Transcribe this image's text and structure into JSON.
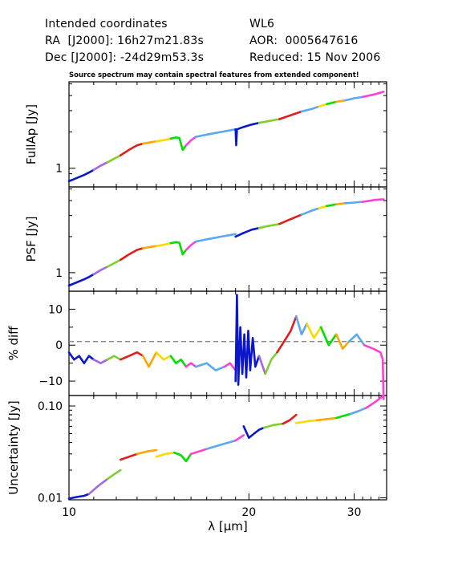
{
  "header": {
    "intended": "Intended coordinates",
    "ra": "RA  [J2000]: 16h27m21.83s",
    "dec": "Dec [J2000]: -24d29m53.3s",
    "target": "WL6",
    "aor": "AOR:  0005647616",
    "reduced": "Reduced: 15 Nov 2006"
  },
  "note": "Source spectrum may contain spectral features from extended component!",
  "colors": {
    "segments": [
      "#0b17c8",
      "#a366e8",
      "#7fcf2f",
      "#e41b1b",
      "#ffa500",
      "#ffd700",
      "#00e000",
      "#ff3fd6",
      "#5aa8ee"
    ]
  },
  "chart_data": [
    {
      "type": "line",
      "ylabel": "FullAp [Jy]",
      "yscale": "log",
      "ylim": [
        0.7,
        5.2
      ],
      "yticks": [
        {
          "value": 1,
          "label": "1"
        }
      ],
      "xlabel": "",
      "xlim": [
        10,
        34
      ],
      "series": [
        {
          "color_index": 0,
          "x": [
            10.0,
            10.3,
            10.6,
            10.8,
            11.0
          ],
          "y": [
            0.78,
            0.83,
            0.88,
            0.92,
            0.97
          ]
        },
        {
          "color_index": 1,
          "x": [
            11.0,
            11.3,
            11.6
          ],
          "y": [
            0.97,
            1.05,
            1.12
          ]
        },
        {
          "color_index": 2,
          "x": [
            11.6,
            11.9,
            12.2
          ],
          "y": [
            1.12,
            1.2,
            1.28
          ]
        },
        {
          "color_index": 3,
          "x": [
            12.2,
            12.6,
            13.0,
            13.3
          ],
          "y": [
            1.28,
            1.42,
            1.55,
            1.6
          ]
        },
        {
          "color_index": 4,
          "x": [
            13.3,
            13.6,
            14.0
          ],
          "y": [
            1.6,
            1.63,
            1.67
          ]
        },
        {
          "color_index": 5,
          "x": [
            14.0,
            14.4,
            14.8
          ],
          "y": [
            1.67,
            1.71,
            1.76
          ]
        },
        {
          "color_index": 6,
          "x": [
            14.8,
            15.1,
            15.3,
            15.5,
            15.7
          ],
          "y": [
            1.76,
            1.8,
            1.78,
            1.42,
            1.55
          ]
        },
        {
          "color_index": 7,
          "x": [
            15.7,
            16.0,
            16.3
          ],
          "y": [
            1.55,
            1.7,
            1.82
          ]
        },
        {
          "color_index": 8,
          "x": [
            16.3,
            17.0,
            18.0,
            19.0
          ],
          "y": [
            1.82,
            1.9,
            2.0,
            2.1
          ]
        },
        {
          "color_index": 0,
          "x": [
            19.0,
            19.05,
            19.1,
            19.6,
            20.2,
            20.8
          ],
          "y": [
            2.1,
            1.55,
            2.1,
            2.2,
            2.3,
            2.38
          ]
        },
        {
          "color_index": 2,
          "x": [
            20.8,
            21.5,
            22.5
          ],
          "y": [
            2.38,
            2.45,
            2.55
          ]
        },
        {
          "color_index": 3,
          "x": [
            22.5,
            23.5,
            24.5
          ],
          "y": [
            2.55,
            2.75,
            2.95
          ]
        },
        {
          "color_index": 8,
          "x": [
            24.5,
            25.5,
            26.2
          ],
          "y": [
            2.95,
            3.1,
            3.25
          ]
        },
        {
          "color_index": 5,
          "x": [
            26.2,
            27.0
          ],
          "y": [
            3.25,
            3.4
          ]
        },
        {
          "color_index": 6,
          "x": [
            27.0,
            28.0
          ],
          "y": [
            3.4,
            3.55
          ]
        },
        {
          "color_index": 4,
          "x": [
            28.0,
            29.0
          ],
          "y": [
            3.55,
            3.65
          ]
        },
        {
          "color_index": 8,
          "x": [
            29.0,
            30.0,
            31.0
          ],
          "y": [
            3.65,
            3.8,
            3.9
          ]
        },
        {
          "color_index": 7,
          "x": [
            31.0,
            32.5,
            33.6
          ],
          "y": [
            3.9,
            4.1,
            4.3
          ]
        }
      ]
    },
    {
      "type": "line",
      "ylabel": "PSF [Jy]",
      "yscale": "log",
      "ylim": [
        0.7,
        5.2
      ],
      "yticks": [
        {
          "value": 1,
          "label": "1"
        }
      ],
      "xlabel": "",
      "xlim": [
        10,
        34
      ],
      "series": [
        {
          "color_index": 0,
          "x": [
            10.0,
            10.3,
            10.6,
            10.8,
            11.0
          ],
          "y": [
            0.78,
            0.83,
            0.88,
            0.92,
            0.97
          ]
        },
        {
          "color_index": 1,
          "x": [
            11.0,
            11.3,
            11.6
          ],
          "y": [
            0.97,
            1.05,
            1.12
          ]
        },
        {
          "color_index": 2,
          "x": [
            11.6,
            11.9,
            12.2
          ],
          "y": [
            1.12,
            1.2,
            1.28
          ]
        },
        {
          "color_index": 3,
          "x": [
            12.2,
            12.6,
            13.0,
            13.3
          ],
          "y": [
            1.28,
            1.42,
            1.55,
            1.6
          ]
        },
        {
          "color_index": 4,
          "x": [
            13.3,
            13.6,
            14.0
          ],
          "y": [
            1.6,
            1.63,
            1.67
          ]
        },
        {
          "color_index": 5,
          "x": [
            14.0,
            14.4,
            14.8
          ],
          "y": [
            1.67,
            1.71,
            1.76
          ]
        },
        {
          "color_index": 6,
          "x": [
            14.8,
            15.1,
            15.3,
            15.5,
            15.7
          ],
          "y": [
            1.76,
            1.8,
            1.78,
            1.42,
            1.55
          ]
        },
        {
          "color_index": 7,
          "x": [
            15.7,
            16.0,
            16.3
          ],
          "y": [
            1.55,
            1.7,
            1.82
          ]
        },
        {
          "color_index": 8,
          "x": [
            16.3,
            17.0,
            18.0,
            19.0
          ],
          "y": [
            1.82,
            1.9,
            2.0,
            2.1
          ]
        },
        {
          "color_index": 0,
          "x": [
            19.0,
            19.6,
            20.2,
            20.8
          ],
          "y": [
            2.0,
            2.15,
            2.28,
            2.36
          ]
        },
        {
          "color_index": 2,
          "x": [
            20.8,
            21.5,
            22.5
          ],
          "y": [
            2.36,
            2.45,
            2.55
          ]
        },
        {
          "color_index": 3,
          "x": [
            22.5,
            23.5,
            24.5
          ],
          "y": [
            2.55,
            2.8,
            3.05
          ]
        },
        {
          "color_index": 8,
          "x": [
            24.5,
            25.5,
            26.2
          ],
          "y": [
            3.05,
            3.3,
            3.45
          ]
        },
        {
          "color_index": 5,
          "x": [
            26.2,
            27.0
          ],
          "y": [
            3.45,
            3.6
          ]
        },
        {
          "color_index": 6,
          "x": [
            27.0,
            28.0
          ],
          "y": [
            3.6,
            3.72
          ]
        },
        {
          "color_index": 4,
          "x": [
            28.0,
            29.0
          ],
          "y": [
            3.72,
            3.8
          ]
        },
        {
          "color_index": 8,
          "x": [
            29.0,
            30.0,
            31.0
          ],
          "y": [
            3.8,
            3.85,
            3.9
          ]
        },
        {
          "color_index": 7,
          "x": [
            31.0,
            32.5,
            33.6
          ],
          "y": [
            3.9,
            4.05,
            4.1
          ]
        }
      ]
    },
    {
      "type": "line",
      "ylabel": "% diff",
      "yscale": "linear",
      "ylim": [
        -14,
        15
      ],
      "yticks": [
        {
          "value": 10,
          "label": "10"
        },
        {
          "value": 0,
          "label": "0"
        },
        {
          "value": -10,
          "label": "−10"
        }
      ],
      "reference_line": 1,
      "xlabel": "",
      "xlim": [
        10,
        34
      ],
      "series": [
        {
          "color_index": 0,
          "x": [
            10.0,
            10.2,
            10.4,
            10.6,
            10.8,
            11.0
          ],
          "y": [
            -2,
            -4,
            -3,
            -5,
            -3,
            -4
          ]
        },
        {
          "color_index": 1,
          "x": [
            11.0,
            11.3,
            11.6
          ],
          "y": [
            -4,
            -5,
            -4
          ]
        },
        {
          "color_index": 2,
          "x": [
            11.6,
            11.9,
            12.2
          ],
          "y": [
            -4,
            -3,
            -4
          ]
        },
        {
          "color_index": 3,
          "x": [
            12.2,
            12.6,
            13.0,
            13.3
          ],
          "y": [
            -4,
            -3,
            -2,
            -3
          ]
        },
        {
          "color_index": 4,
          "x": [
            13.3,
            13.6,
            14.0
          ],
          "y": [
            -3,
            -6,
            -2
          ]
        },
        {
          "color_index": 5,
          "x": [
            14.0,
            14.4,
            14.8
          ],
          "y": [
            -2,
            -4,
            -3
          ]
        },
        {
          "color_index": 6,
          "x": [
            14.8,
            15.1,
            15.4,
            15.7
          ],
          "y": [
            -3,
            -5,
            -4,
            -6
          ]
        },
        {
          "color_index": 7,
          "x": [
            15.7,
            16.0,
            16.3
          ],
          "y": [
            -6,
            -5,
            -6
          ]
        },
        {
          "color_index": 8,
          "x": [
            16.3,
            17.0,
            17.6,
            18.2
          ],
          "y": [
            -6,
            -5,
            -7,
            -6
          ]
        },
        {
          "color_index": 7,
          "x": [
            18.2,
            18.6,
            19.0
          ],
          "y": [
            -6,
            -5,
            -7
          ]
        },
        {
          "color_index": 0,
          "x": [
            19.0,
            19.1,
            19.2,
            19.35,
            19.5,
            19.65,
            19.8,
            19.95,
            20.1,
            20.3,
            20.5,
            20.8
          ],
          "y": [
            -10,
            14,
            -11,
            5,
            -8,
            3,
            -9,
            4,
            -7,
            2,
            -6,
            -3
          ]
        },
        {
          "color_index": 1,
          "x": [
            20.8,
            21.3
          ],
          "y": [
            -3,
            -8
          ]
        },
        {
          "color_index": 2,
          "x": [
            21.3,
            21.8,
            22.3
          ],
          "y": [
            -8,
            -4,
            -2
          ]
        },
        {
          "color_index": 3,
          "x": [
            22.3,
            22.9,
            23.5,
            24.0
          ],
          "y": [
            -2,
            1,
            4,
            8
          ]
        },
        {
          "color_index": 8,
          "x": [
            24.0,
            24.5,
            25.0
          ],
          "y": [
            8,
            3,
            6
          ]
        },
        {
          "color_index": 5,
          "x": [
            25.0,
            25.7,
            26.4
          ],
          "y": [
            6,
            2,
            5
          ]
        },
        {
          "color_index": 6,
          "x": [
            26.4,
            27.2,
            28.0
          ],
          "y": [
            5,
            0,
            3
          ]
        },
        {
          "color_index": 4,
          "x": [
            28.0,
            28.7,
            29.4
          ],
          "y": [
            3,
            -1,
            1
          ]
        },
        {
          "color_index": 8,
          "x": [
            29.4,
            30.3,
            31.2
          ],
          "y": [
            1,
            3,
            0
          ]
        },
        {
          "color_index": 7,
          "x": [
            31.2,
            32.3,
            33.2,
            33.5,
            33.6
          ],
          "y": [
            0,
            -1,
            -2,
            -4,
            -15
          ]
        }
      ]
    },
    {
      "type": "line",
      "ylabel": "Uncertainty [Jy]",
      "yscale": "log",
      "ylim": [
        0.0095,
        0.13
      ],
      "yticks": [
        {
          "value": 0.01,
          "label": "0.01"
        },
        {
          "value": 0.1,
          "label": "0.10"
        }
      ],
      "xlabel": "λ [µm]",
      "xlim": [
        10,
        34
      ],
      "xticks": [
        {
          "value": 10,
          "label": "10"
        },
        {
          "value": 20,
          "label": "20"
        },
        {
          "value": 30,
          "label": "30"
        }
      ],
      "series": [
        {
          "color_index": 0,
          "x": [
            10.0,
            10.3,
            10.6,
            10.8
          ],
          "y": [
            0.0098,
            0.0102,
            0.0105,
            0.011
          ]
        },
        {
          "color_index": 1,
          "x": [
            10.8,
            11.2,
            11.6
          ],
          "y": [
            0.011,
            0.0135,
            0.016
          ]
        },
        {
          "color_index": 2,
          "x": [
            11.6,
            11.9,
            12.2
          ],
          "y": [
            0.016,
            0.018,
            0.02
          ]
        },
        {
          "color_index": 3,
          "x": [
            12.2,
            12.6,
            13.0
          ],
          "y": [
            0.026,
            0.028,
            0.03
          ]
        },
        {
          "color_index": 4,
          "x": [
            13.0,
            13.5,
            14.0
          ],
          "y": [
            0.03,
            0.032,
            0.033
          ]
        },
        {
          "color_index": 5,
          "x": [
            14.0,
            14.5,
            15.0
          ],
          "y": [
            0.028,
            0.03,
            0.031
          ]
        },
        {
          "color_index": 6,
          "x": [
            15.0,
            15.4,
            15.7,
            16.0
          ],
          "y": [
            0.031,
            0.029,
            0.025,
            0.03
          ]
        },
        {
          "color_index": 7,
          "x": [
            16.0,
            16.5,
            17.0
          ],
          "y": [
            0.03,
            0.032,
            0.034
          ]
        },
        {
          "color_index": 8,
          "x": [
            17.0,
            18.0,
            19.0
          ],
          "y": [
            0.034,
            0.038,
            0.042
          ]
        },
        {
          "color_index": 7,
          "x": [
            19.0,
            19.3,
            19.6
          ],
          "y": [
            0.042,
            0.045,
            0.048
          ]
        },
        {
          "color_index": 0,
          "x": [
            19.6,
            20.0,
            20.4,
            20.8,
            21.2
          ],
          "y": [
            0.06,
            0.045,
            0.05,
            0.055,
            0.058
          ]
        },
        {
          "color_index": 2,
          "x": [
            21.2,
            22.0,
            22.8
          ],
          "y": [
            0.058,
            0.062,
            0.064
          ]
        },
        {
          "color_index": 3,
          "x": [
            22.8,
            23.4,
            24.0
          ],
          "y": [
            0.064,
            0.07,
            0.08
          ]
        },
        {
          "color_index": 5,
          "x": [
            24.0,
            25.0,
            26.0
          ],
          "y": [
            0.065,
            0.068,
            0.07
          ]
        },
        {
          "color_index": 4,
          "x": [
            26.0,
            27.0,
            28.0
          ],
          "y": [
            0.07,
            0.072,
            0.074
          ]
        },
        {
          "color_index": 6,
          "x": [
            28.0,
            28.8,
            29.6
          ],
          "y": [
            0.074,
            0.078,
            0.082
          ]
        },
        {
          "color_index": 8,
          "x": [
            29.6,
            30.5,
            31.4
          ],
          "y": [
            0.082,
            0.088,
            0.095
          ]
        },
        {
          "color_index": 7,
          "x": [
            31.4,
            32.5,
            33.6
          ],
          "y": [
            0.095,
            0.11,
            0.13
          ]
        }
      ]
    }
  ]
}
